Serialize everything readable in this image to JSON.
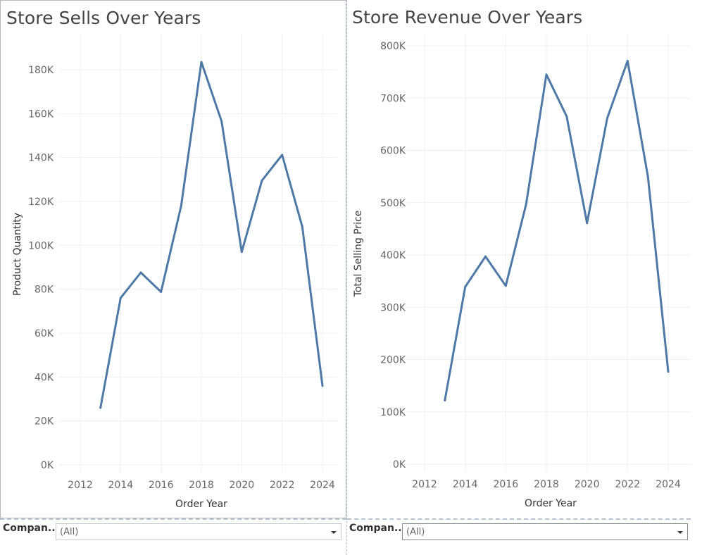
{
  "chart_data": [
    {
      "type": "line",
      "title": "Store Sells Over Years",
      "xlabel": "Order Year",
      "ylabel": "Product Quantity",
      "x": [
        2013,
        2014,
        2015,
        2016,
        2017,
        2018,
        2019,
        2020,
        2021,
        2022,
        2023,
        2024
      ],
      "values": [
        26000,
        76000,
        87600,
        78800,
        118000,
        183500,
        156500,
        97000,
        129500,
        141200,
        108500,
        36000
      ],
      "xlim": [
        2011.5,
        2024.8
      ],
      "ylim": [
        0,
        190000
      ],
      "xticks": [
        2012,
        2014,
        2016,
        2018,
        2020,
        2022,
        2024
      ],
      "xtick_labels": [
        "2012",
        "2014",
        "2016",
        "2018",
        "2020",
        "2022",
        "2024"
      ],
      "yticks": [
        0,
        20000,
        40000,
        60000,
        80000,
        100000,
        120000,
        140000,
        160000,
        180000
      ],
      "ytick_labels": [
        "0K",
        "20K",
        "40K",
        "60K",
        "80K",
        "100K",
        "120K",
        "140K",
        "160K",
        "180K"
      ],
      "grid": true,
      "color": "#4e79a7"
    },
    {
      "type": "line",
      "title": "Store Revenue Over Years",
      "xlabel": "Order Year",
      "ylabel": "Total Selling Price",
      "x": [
        2013,
        2014,
        2015,
        2016,
        2017,
        2018,
        2019,
        2020,
        2021,
        2022,
        2023,
        2024
      ],
      "values": [
        122000,
        339000,
        397000,
        341000,
        497000,
        745000,
        665000,
        461000,
        662000,
        771000,
        550000,
        177000
      ],
      "xlim": [
        2011.5,
        2024.8
      ],
      "ylim": [
        0,
        800000
      ],
      "xticks": [
        2012,
        2014,
        2016,
        2018,
        2020,
        2022,
        2024
      ],
      "xtick_labels": [
        "2012",
        "2014",
        "2016",
        "2018",
        "2020",
        "2022",
        "2024"
      ],
      "yticks": [
        0,
        100000,
        200000,
        300000,
        400000,
        500000,
        600000,
        700000,
        800000
      ],
      "ytick_labels": [
        "0K",
        "100K",
        "200K",
        "300K",
        "400K",
        "500K",
        "600K",
        "700K",
        "800K"
      ],
      "grid": true,
      "color": "#4e79a7"
    }
  ],
  "filters": {
    "left": {
      "label": "Compan..",
      "value": "(All)"
    },
    "right": {
      "label": "Compan..",
      "value": "(All)"
    }
  }
}
